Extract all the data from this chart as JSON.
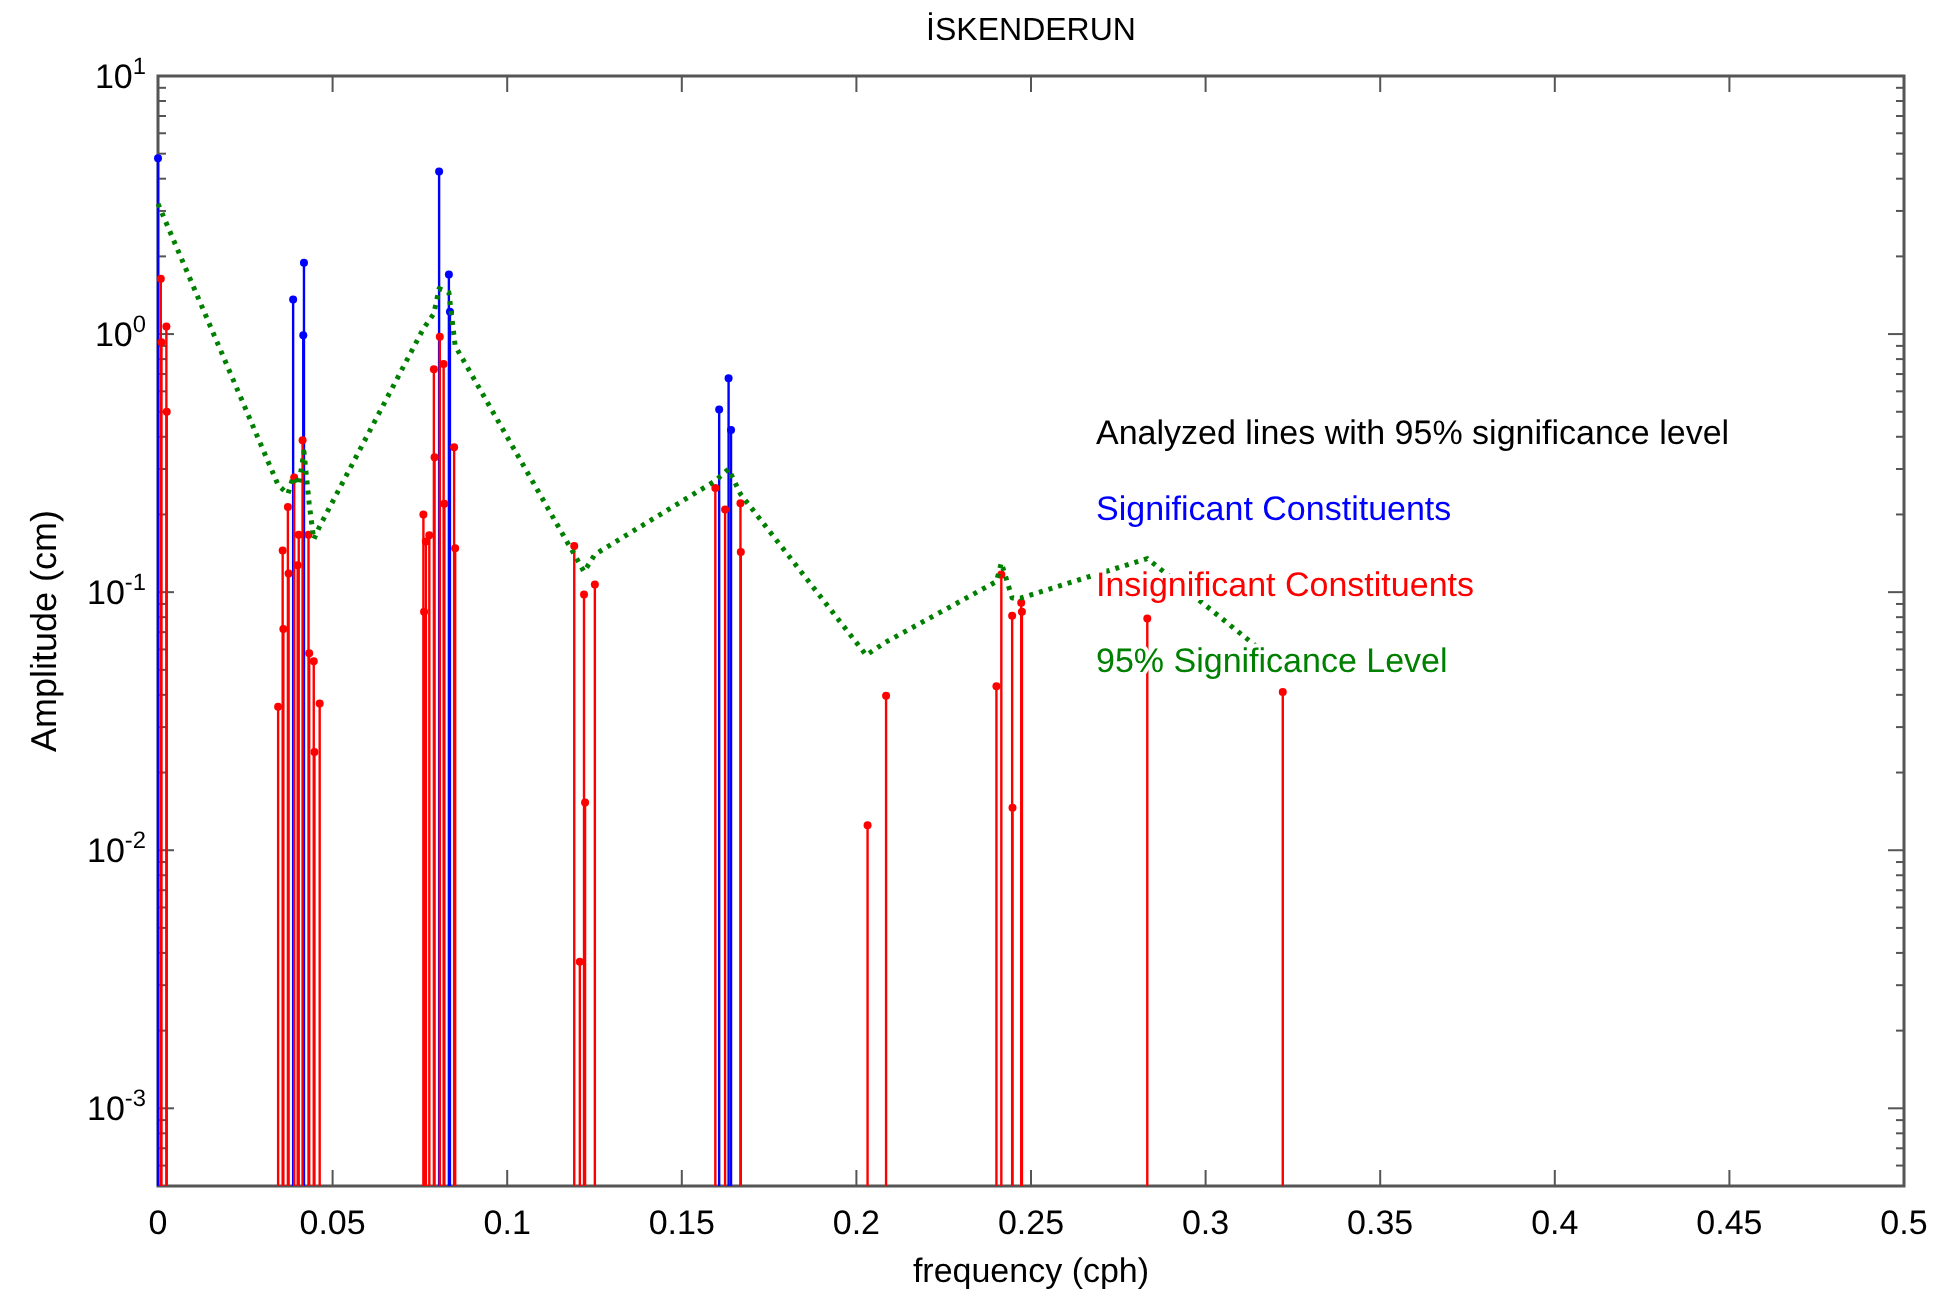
{
  "chart_data": {
    "type": "lollipop",
    "title": "İSKENDERUN",
    "xlabel": "frequency (cph)",
    "ylabel": "Amplitude (cm)",
    "legend_title": "Analyzed lines with 95% significance level",
    "legend": "right",
    "log": "y",
    "grid": false,
    "marker": "circle",
    "xlim": [
      0,
      0.5
    ],
    "xticks": [
      {
        "value": 0,
        "label": "0"
      },
      0.05,
      0.1,
      0.15,
      0.2,
      0.25,
      0.3,
      0.35,
      0.4,
      0.45,
      0.5
    ],
    "ylim": [
      0.0005,
      10
    ],
    "yticks": [
      {
        "value": 0.0006,
        "label": null
      },
      {
        "value": 0.0007,
        "label": null
      },
      {
        "value": 0.0008,
        "label": null
      },
      {
        "value": 0.0009,
        "label": null
      },
      {
        "value": 0.001,
        "label": "10$^{-3}$"
      },
      {
        "value": 0.002,
        "label": null
      },
      {
        "value": 0.003,
        "label": null
      },
      {
        "value": 0.004,
        "label": null
      },
      {
        "value": 0.005,
        "label": null
      },
      {
        "value": 0.006,
        "label": null
      },
      {
        "value": 0.007,
        "label": null
      },
      {
        "value": 0.008,
        "label": null
      },
      {
        "value": 0.009,
        "label": null
      },
      {
        "value": 0.01,
        "label": "10$^{-2}$"
      },
      {
        "value": 0.02,
        "label": null
      },
      {
        "value": 0.03,
        "label": null
      },
      {
        "value": 0.04,
        "label": null
      },
      {
        "value": 0.05,
        "label": null
      },
      {
        "value": 0.06,
        "label": null
      },
      {
        "value": 0.07,
        "label": null
      },
      {
        "value": 0.08,
        "label": null
      },
      {
        "value": 0.09,
        "label": null
      },
      {
        "value": 0.1,
        "label": "10$^{-1}$"
      },
      {
        "value": 0.2,
        "label": null
      },
      {
        "value": 0.3,
        "label": null
      },
      {
        "value": 0.4,
        "label": null
      },
      {
        "value": 0.5,
        "label": null
      },
      {
        "value": 0.6,
        "label": null
      },
      {
        "value": 0.7,
        "label": null
      },
      {
        "value": 0.8,
        "label": null
      },
      {
        "value": 0.9,
        "label": null
      },
      {
        "value": 1,
        "label": "10$^{0}$"
      },
      {
        "value": 2,
        "label": null
      },
      {
        "value": 3,
        "label": null
      },
      {
        "value": 4,
        "label": null
      },
      {
        "value": 5,
        "label": null
      },
      {
        "value": 6,
        "label": null
      },
      {
        "value": 7,
        "label": null
      },
      {
        "value": 8,
        "label": null
      },
      {
        "value": 9,
        "label": null
      },
      {
        "value": 10,
        "label": "10$^{1}$"
      }
    ],
    "series": [
      {
        "name": "Significant Constituents",
        "color": "#0000ff",
        "x": [
          0,
          0.0387,
          0.0416,
          0.0418,
          0.0805,
          0.0833,
          0.0836,
          0.1607,
          0.1634,
          0.1641
        ],
        "values": [
          4.8,
          1.36,
          0.99,
          1.89,
          4.27,
          1.7,
          1.22,
          0.51,
          0.675,
          0.425
        ]
      },
      {
        "name": "Insignificant Constituents",
        "color": "#ff0000",
        "x": [
          0.0008,
          0.001,
          0.0024,
          0.0025,
          0.0344,
          0.0357,
          0.0359,
          0.0372,
          0.0374,
          0.039,
          0.04,
          0.0403,
          0.0414,
          0.0431,
          0.0433,
          0.0446,
          0.0448,
          0.0463,
          0.076,
          0.0762,
          0.0767,
          0.0777,
          0.079,
          0.0792,
          0.0807,
          0.0818,
          0.082,
          0.0848,
          0.0851,
          0.1192,
          0.1208,
          0.122,
          0.1223,
          0.1251,
          0.1596,
          0.1624,
          0.1668,
          0.1669,
          0.2032,
          0.2085,
          0.2401,
          0.2415,
          0.2446,
          0.2447,
          0.2472,
          0.2474,
          0.2833,
          0.3221
        ],
        "values": [
          1.64,
          0.93,
          1.07,
          0.5,
          0.036,
          0.145,
          0.072,
          0.214,
          0.118,
          0.278,
          0.127,
          0.167,
          0.388,
          0.167,
          0.058,
          0.054,
          0.024,
          0.037,
          0.2,
          0.084,
          0.157,
          0.166,
          0.73,
          0.333,
          0.977,
          0.765,
          0.22,
          0.364,
          0.148,
          0.151,
          0.0037,
          0.098,
          0.0153,
          0.107,
          0.253,
          0.209,
          0.221,
          0.143,
          0.0125,
          0.0397,
          0.0432,
          0.117,
          0.081,
          0.0146,
          0.091,
          0.084,
          0.079,
          0.041
        ]
      },
      {
        "name": "95% Significance Level",
        "color": "#008000",
        "type": "line",
        "line_style": "dotted",
        "marker": "none",
        "x": [
          0,
          0.0344,
          0.0372,
          0.0387,
          0.0403,
          0.0418,
          0.0433,
          0.0446,
          0.0463,
          0.076,
          0.079,
          0.0805,
          0.0833,
          0.0851,
          0.1192,
          0.122,
          0.1251,
          0.1596,
          0.1634,
          0.1668,
          0.2028,
          0.2084,
          0.2401,
          0.2415,
          0.2446,
          0.2472,
          0.2833,
          0.3221
        ],
        "values": [
          3.2,
          0.26,
          0.24,
          0.28,
          0.26,
          0.35,
          0.22,
          0.16,
          0.18,
          1.05,
          1.2,
          1.5,
          1.45,
          0.9,
          0.14,
          0.12,
          0.14,
          0.27,
          0.3,
          0.24,
          0.057,
          0.064,
          0.11,
          0.13,
          0.095,
          0.095,
          0.135,
          0.051
        ]
      }
    ]
  }
}
